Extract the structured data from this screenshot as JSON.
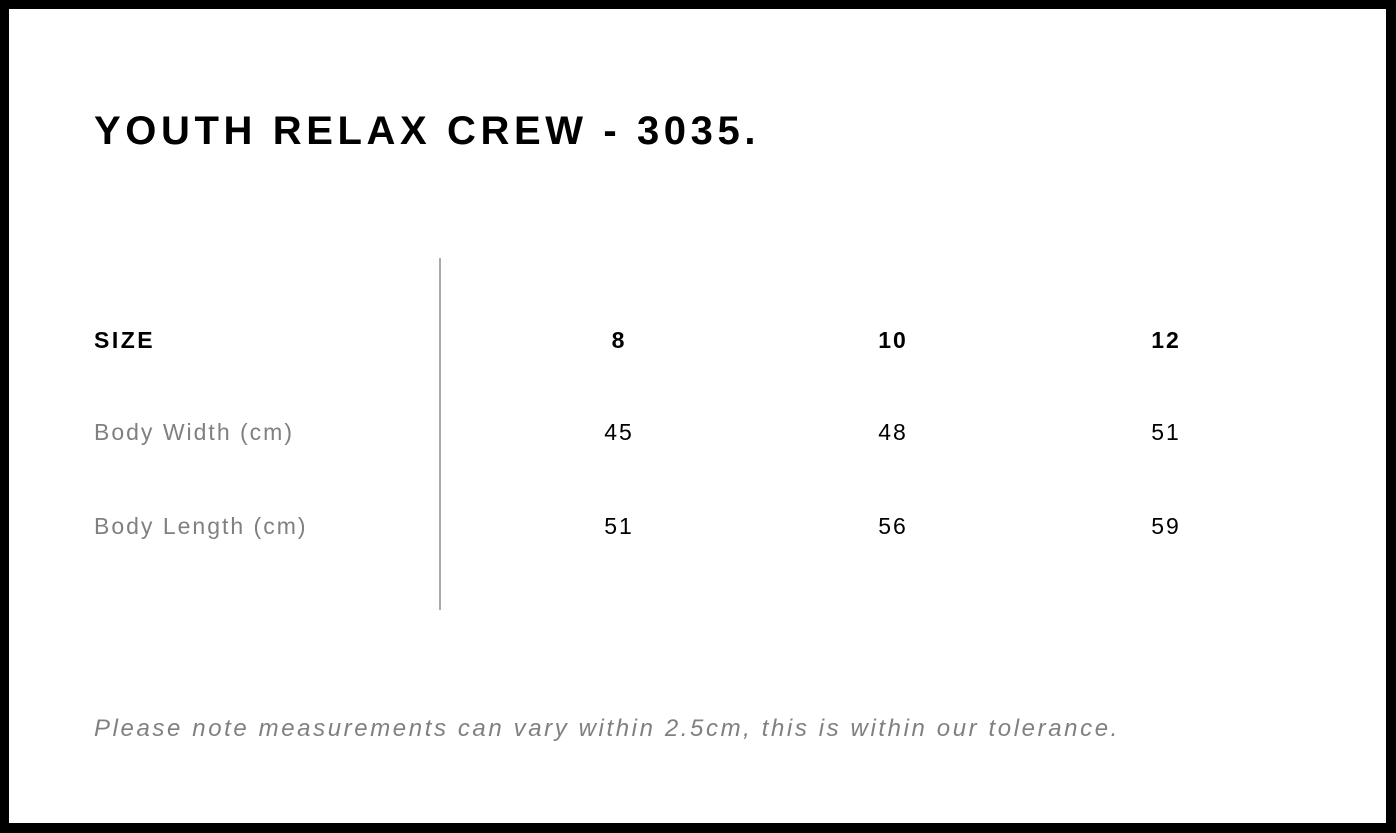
{
  "title": "YOUTH RELAX CREW - 3035.",
  "table": {
    "header": {
      "label": "SIZE",
      "values": [
        "8",
        "10",
        "12"
      ]
    },
    "rows": [
      {
        "label": "Body Width (cm)",
        "values": [
          "45",
          "48",
          "51"
        ]
      },
      {
        "label": "Body Length (cm)",
        "values": [
          "51",
          "56",
          "59"
        ]
      }
    ]
  },
  "note": "Please note measurements can vary within 2.5cm, this is within our tolerance."
}
